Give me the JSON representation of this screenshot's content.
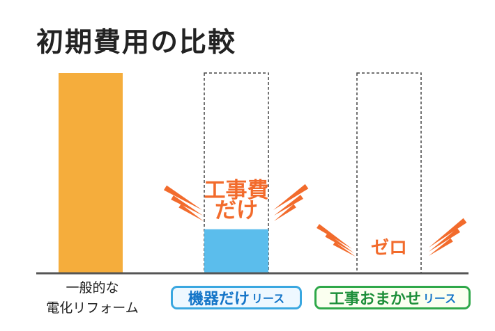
{
  "colors": {
    "orange_bar": "#f5ad3c",
    "blue_bar": "#5bbdec",
    "accent": "#f26b2c",
    "baseline": "#555555",
    "dashed": "#444444"
  },
  "chart_data": {
    "type": "bar",
    "title": "初期費用の比較",
    "categories": [
      "一般的な電化リフォーム",
      "機器だけリース",
      "工事おまかせリース"
    ],
    "values": [
      100,
      22,
      0
    ],
    "reference_values": [
      null,
      100,
      100
    ],
    "annotations": [
      {
        "category_index": 1,
        "lines": [
          "工事費",
          "だけ"
        ]
      },
      {
        "category_index": 2,
        "lines": [
          "ゼロ"
        ]
      }
    ],
    "ylim": [
      0,
      100
    ],
    "grid": false,
    "legend": "none"
  },
  "labels": {
    "cat1_line1": "一般的な",
    "cat1_line2": "電化リフォーム",
    "badge1_main": "機器だけ",
    "badge1_sub": "リース",
    "badge2_main": "工事おまかせ",
    "badge2_sub": "リース"
  }
}
